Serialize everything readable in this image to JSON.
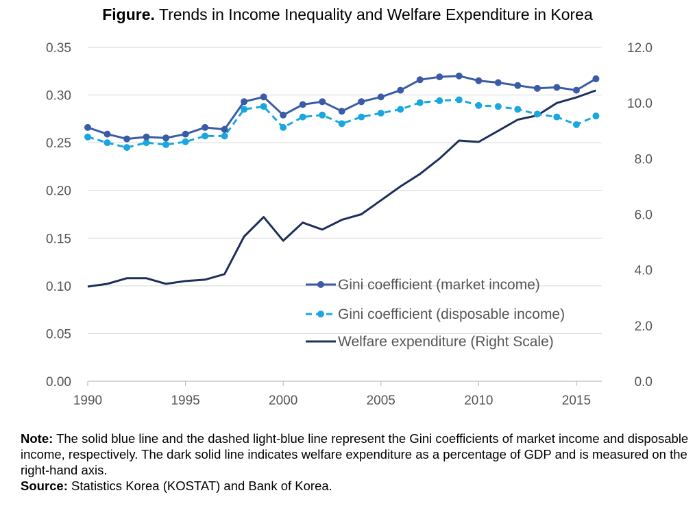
{
  "title": {
    "prefix": "Figure.",
    "text": "Trends in Income Inequality and Welfare Expenditure in Korea"
  },
  "chart_data": {
    "type": "line",
    "title": "Trends in Income Inequality and Welfare Expenditure in Korea",
    "x": [
      1990,
      1991,
      1992,
      1993,
      1994,
      1995,
      1996,
      1997,
      1998,
      1999,
      2000,
      2001,
      2002,
      2003,
      2004,
      2005,
      2006,
      2007,
      2008,
      2009,
      2010,
      2011,
      2012,
      2013,
      2014,
      2015,
      2016
    ],
    "x_ticks": [
      1990,
      1995,
      2000,
      2005,
      2010,
      2015
    ],
    "x_tick_labels": [
      "1990",
      "1995",
      "2000",
      "2005",
      "2010",
      "2015"
    ],
    "xlim": [
      1990,
      2016.3
    ],
    "y_left": {
      "lim": [
        0,
        0.35
      ],
      "ticks": [
        0,
        0.05,
        0.1,
        0.15,
        0.2,
        0.25,
        0.3,
        0.35
      ],
      "tick_labels": [
        "0.00",
        "0.05",
        "0.10",
        "0.15",
        "0.20",
        "0.25",
        "0.30",
        "0.35"
      ]
    },
    "y_right": {
      "lim": [
        0,
        12
      ],
      "ticks": [
        0,
        2,
        4,
        6,
        8,
        10,
        12
      ],
      "tick_labels": [
        "0.0",
        "2.0",
        "4.0",
        "6.0",
        "8.0",
        "10.0",
        "12.0"
      ]
    },
    "grid": "horizontal",
    "legend_position": "lower-right",
    "series": [
      {
        "name": "Gini coefficient (market income)",
        "axis": "left",
        "color": "#3a5ba6",
        "style": "solid-markers",
        "values": [
          0.266,
          0.259,
          0.254,
          0.256,
          0.255,
          0.259,
          0.266,
          0.264,
          0.293,
          0.298,
          0.279,
          0.29,
          0.293,
          0.283,
          0.293,
          0.298,
          0.305,
          0.316,
          0.319,
          0.32,
          0.315,
          0.313,
          0.31,
          0.307,
          0.308,
          0.305,
          0.317
        ]
      },
      {
        "name": "Gini coefficient (disposable income)",
        "axis": "left",
        "color": "#1aa7e0",
        "style": "dashed-markers",
        "values": [
          0.256,
          0.25,
          0.245,
          0.25,
          0.248,
          0.251,
          0.257,
          0.257,
          0.285,
          0.288,
          0.266,
          0.277,
          0.279,
          0.27,
          0.277,
          0.281,
          0.285,
          0.292,
          0.294,
          0.295,
          0.289,
          0.288,
          0.285,
          0.28,
          0.277,
          0.269,
          0.278
        ]
      },
      {
        "name": "Welfare expenditure (Right Scale)",
        "axis": "right",
        "color": "#1e2f5c",
        "style": "solid",
        "values": [
          3.4,
          3.5,
          3.7,
          3.7,
          3.5,
          3.6,
          3.65,
          3.85,
          5.2,
          5.9,
          5.05,
          5.7,
          5.45,
          5.8,
          6.0,
          6.5,
          7.0,
          7.45,
          8.0,
          8.65,
          8.6,
          9.0,
          9.4,
          9.55,
          10.0,
          10.2,
          10.45
        ]
      }
    ]
  },
  "note": {
    "note_label": "Note:",
    "note_text": " The solid blue line and the dashed light-blue line represent the Gini coefficients of market income and disposable income, respectively. The dark solid line indicates welfare expenditure as a percentage of GDP and is measured on the right-hand axis.",
    "source_label": "Source:",
    "source_text": " Statistics Korea (KOSTAT) and Bank of Korea."
  }
}
